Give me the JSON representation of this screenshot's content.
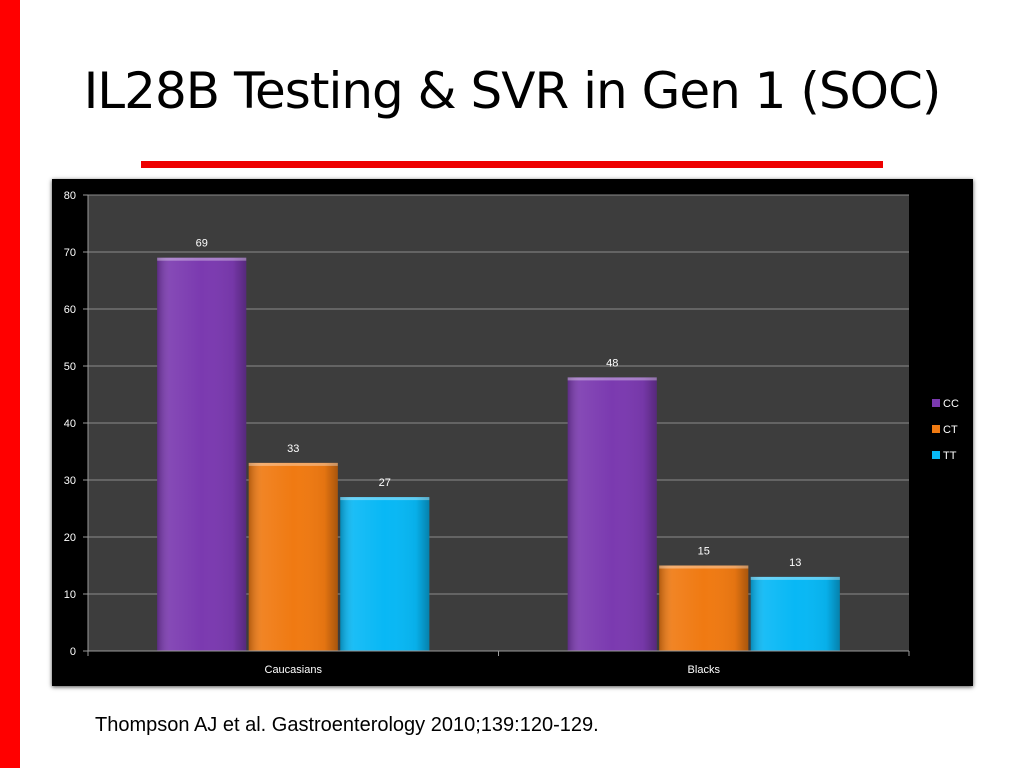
{
  "slide": {
    "title": "IL28B Testing & SVR in Gen 1 (SOC)",
    "citation": "Thompson AJ et al. Gastroenterology 2010;139:120-129."
  },
  "colors": {
    "accent_bar": "#ff0000",
    "plot_background": "#3d3d3d",
    "panel_background": "#000000"
  },
  "chart_data": {
    "type": "bar",
    "title": "",
    "xlabel": "",
    "ylabel": "",
    "categories": [
      "Caucasians",
      "Blacks"
    ],
    "series": [
      {
        "name": "CC",
        "values": [
          69,
          48
        ],
        "color": "#7b3ab0"
      },
      {
        "name": "CT",
        "values": [
          33,
          15
        ],
        "color": "#f07a12"
      },
      {
        "name": "TT",
        "values": [
          27,
          13
        ],
        "color": "#08b8f5"
      }
    ],
    "ylim": [
      0,
      80
    ],
    "yticks": [
      0,
      10,
      20,
      30,
      40,
      50,
      60,
      70,
      80
    ],
    "data_labels": true,
    "grid": true,
    "legend_position": "right"
  }
}
